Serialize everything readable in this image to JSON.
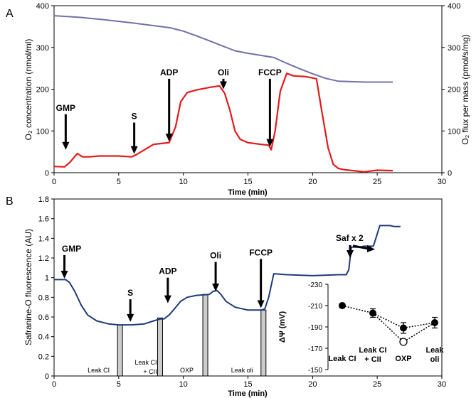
{
  "chart_data": [
    {
      "panel_label": "A",
      "type": "line",
      "xlabel": "Time (min)",
      "ylabel": "O₂ concentration (nmol/ml)",
      "y2label": "O₂ flux per mass (pmol/s/mg)",
      "xlim": [
        0,
        30
      ],
      "ylim": [
        0,
        400
      ],
      "y2lim": [
        0,
        400
      ],
      "x_ticks": [
        0,
        5,
        10,
        15,
        20,
        25,
        30
      ],
      "y_ticks": [
        0,
        100,
        200,
        300,
        400
      ],
      "y2_ticks": [
        0,
        100,
        200,
        300,
        400
      ],
      "series": [
        {
          "name": "O2 concentration",
          "color": "#7070a8",
          "axis": "left",
          "x": [
            0,
            2,
            4,
            6,
            8,
            9,
            10,
            11,
            12,
            13,
            14,
            15,
            16,
            17,
            18,
            19,
            20,
            21,
            22,
            23,
            24,
            25,
            26.2
          ],
          "y": [
            376,
            372,
            366,
            359,
            351,
            347,
            339,
            328,
            316,
            304,
            292,
            286,
            281,
            276,
            262,
            249,
            237,
            226,
            219,
            218,
            217,
            217,
            217
          ]
        },
        {
          "name": "O2 flux per mass",
          "color": "#e31a1c",
          "axis": "right",
          "x": [
            0,
            0.8,
            1.2,
            1.8,
            2.2,
            2.7,
            3.5,
            5,
            6,
            6.4,
            7,
            7.7,
            8.3,
            8.9,
            9.4,
            9.8,
            10.3,
            11,
            12,
            12.8,
            13.2,
            13.6,
            14,
            14.4,
            15,
            16,
            16.6,
            16.8,
            17.1,
            17.5,
            18,
            18.5,
            19.5,
            20.3,
            20.7,
            21.2,
            21.6,
            22,
            22.5,
            24,
            25,
            26.2
          ],
          "y": [
            15,
            14,
            24,
            46,
            38,
            38,
            40,
            40,
            38,
            44,
            55,
            68,
            70,
            72,
            110,
            170,
            192,
            198,
            204,
            208,
            190,
            150,
            100,
            80,
            72,
            68,
            66,
            55,
            100,
            195,
            238,
            232,
            230,
            225,
            150,
            60,
            20,
            10,
            7,
            2,
            6,
            5
          ]
        }
      ],
      "annotations": [
        {
          "text": "GMP",
          "x": 0.9,
          "arrow_top": 140,
          "arrow_bottom": 55
        },
        {
          "text": "S",
          "x": 6.2,
          "arrow_top": 120,
          "arrow_bottom": 45
        },
        {
          "text": "ADP",
          "x": 8.9,
          "arrow_top": 225,
          "arrow_bottom": 75
        },
        {
          "text": "Oli",
          "x": 13.1,
          "arrow_top": 225,
          "arrow_bottom": 200
        },
        {
          "text": "FCCP",
          "x": 16.7,
          "arrow_top": 225,
          "arrow_bottom": 62
        }
      ]
    },
    {
      "panel_label": "B",
      "type": "line",
      "xlabel": "Time (min)",
      "ylabel": "Safranine-O fluorescence (AU)",
      "xlim": [
        0,
        30
      ],
      "ylim": [
        0,
        1.8
      ],
      "x_ticks": [
        0,
        5,
        10,
        15,
        20,
        25,
        30
      ],
      "y_ticks": [
        0,
        0.2,
        0.4,
        0.6,
        0.8,
        1,
        1.2,
        1.4,
        1.6,
        1.8
      ],
      "y_tick_labels": [
        "0",
        "0.2",
        "0.4",
        "0.6",
        "0.8",
        "1",
        "1.2",
        "1.4",
        "1.6",
        "1.8"
      ],
      "series": [
        {
          "name": "Safranine-O fluorescence",
          "color": "#1f3a7a",
          "x": [
            0,
            0.9,
            1.2,
            1.6,
            2.1,
            2.6,
            3.3,
            4.2,
            5,
            6,
            7,
            7.7,
            8.2,
            8.5,
            8.9,
            9.3,
            9.8,
            10.3,
            11,
            12,
            12.3,
            12.6,
            12.9,
            13.3,
            14,
            15,
            16,
            16.3,
            16.6,
            17,
            18,
            20,
            22,
            22.6,
            22.8,
            23,
            23.6,
            24,
            24.7,
            24.9,
            25.2,
            25.7,
            26,
            26.3,
            26.8
          ],
          "y": [
            0.98,
            0.98,
            0.95,
            0.86,
            0.72,
            0.62,
            0.56,
            0.53,
            0.52,
            0.52,
            0.53,
            0.56,
            0.58,
            0.58,
            0.62,
            0.68,
            0.76,
            0.8,
            0.82,
            0.83,
            0.86,
            0.87,
            0.83,
            0.76,
            0.7,
            0.67,
            0.67,
            0.68,
            0.8,
            1.04,
            1.03,
            1.02,
            1.03,
            1.03,
            1.08,
            1.31,
            1.31,
            1.32,
            1.32,
            1.4,
            1.53,
            1.53,
            1.53,
            1.52,
            1.52
          ]
        }
      ],
      "bars": [
        {
          "label": "Leak CI",
          "x": 5.1,
          "value": 0.52
        },
        {
          "label": "Leak CI + CII",
          "x": 8.2,
          "value": 0.59
        },
        {
          "label": "OXP",
          "x": 11.7,
          "value": 0.83
        },
        {
          "label": "Leak oli",
          "x": 16.2,
          "value": 0.67
        }
      ],
      "bar_color": "#cccccc",
      "annotations": [
        {
          "text": "GMP",
          "x": 0.8,
          "arrow_top": 1.23,
          "arrow_bottom": 0.99
        },
        {
          "text": "S",
          "x": 5.9,
          "arrow_top": 0.78,
          "arrow_bottom": 0.55
        },
        {
          "text": "ADP",
          "x": 8.8,
          "arrow_top": 1.0,
          "arrow_bottom": 0.74
        },
        {
          "text": "Oli",
          "x": 12.5,
          "arrow_top": 1.16,
          "arrow_bottom": 0.86
        },
        {
          "text": "FCCP",
          "x": 16.0,
          "arrow_top": 1.19,
          "arrow_bottom": 0.69
        },
        {
          "text": "Saf x 2",
          "x": 22.9,
          "arrow_top": 1.36,
          "arrow_bottom": 1.2
        }
      ]
    },
    {
      "panel_label": "B-inset",
      "type": "scatter",
      "ylabel": "ΔΨ (mV)",
      "ylim": [
        -230,
        -150
      ],
      "y_ticks": [
        -230,
        -210,
        -190,
        -170,
        -150
      ],
      "categories": [
        "Leak CI",
        "Leak CI\n+ CII",
        "OXP",
        "Leak\noli"
      ],
      "category_labels": [
        [
          "Leak CI"
        ],
        [
          "Leak CI",
          "+ CII"
        ],
        [
          "OXP"
        ],
        [
          "Leak",
          "oli"
        ]
      ],
      "series": [
        {
          "name": "filled",
          "values": [
            -210,
            -203,
            -189,
            -194
          ],
          "errors": [
            2,
            4,
            5,
            5
          ],
          "style": "filled"
        },
        {
          "name": "open",
          "category_index": 2,
          "value": -176,
          "style": "open"
        }
      ]
    }
  ]
}
